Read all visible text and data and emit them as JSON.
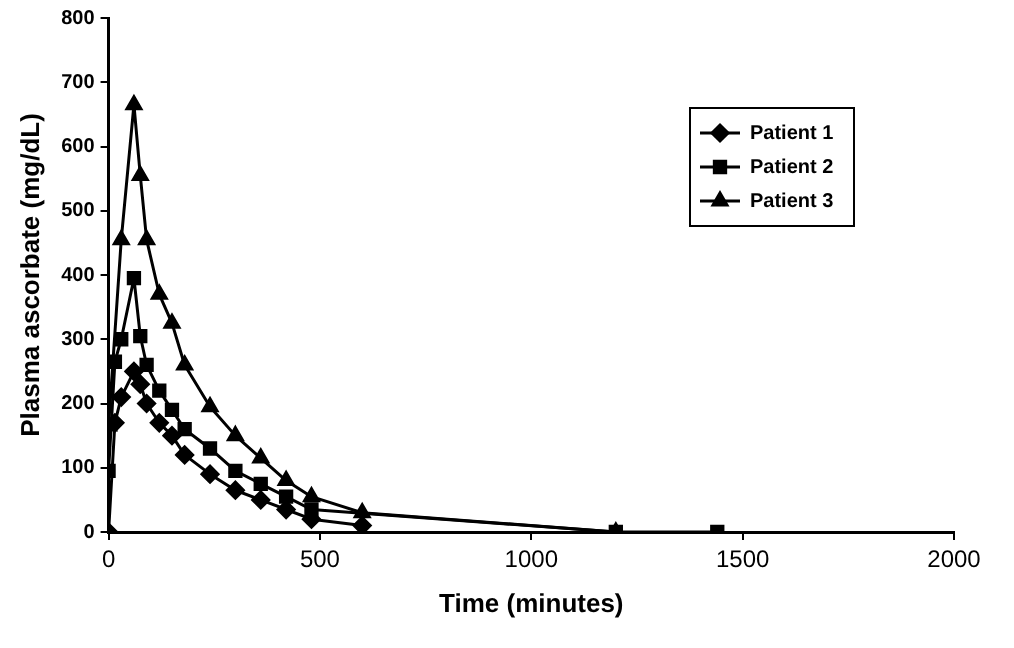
{
  "chart_data": {
    "type": "line",
    "xlabel": "Time (minutes)",
    "ylabel": "Plasma ascorbate (mg/dL)",
    "xlim": [
      0,
      2000
    ],
    "xticks": [
      0,
      500,
      1000,
      1500,
      2000
    ],
    "ylim": [
      0,
      800
    ],
    "yticks": [
      0,
      100,
      200,
      300,
      400,
      500,
      600,
      700,
      800
    ],
    "legend": "top right",
    "line_style": "solid",
    "series": [
      {
        "name": "Patient 1",
        "color": "#000000",
        "marker": "diamond",
        "x": [
          0,
          15,
          30,
          60,
          75,
          90,
          120,
          150,
          180,
          240,
          300,
          360,
          420,
          480,
          600
        ],
        "values": [
          0,
          170,
          210,
          250,
          230,
          200,
          170,
          150,
          120,
          90,
          65,
          50,
          35,
          20,
          10
        ]
      },
      {
        "name": "Patient 2",
        "color": "#000000",
        "marker": "square",
        "x": [
          0,
          15,
          30,
          60,
          75,
          90,
          120,
          150,
          180,
          240,
          300,
          360,
          420,
          480,
          600,
          1200,
          1440
        ],
        "values": [
          95,
          265,
          300,
          395,
          305,
          260,
          220,
          190,
          160,
          130,
          95,
          75,
          55,
          35,
          null,
          0,
          0
        ]
      },
      {
        "name": "Patient 3",
        "color": "#000000",
        "marker": "triangle",
        "x": [
          0,
          30,
          60,
          75,
          90,
          120,
          150,
          180,
          240,
          300,
          360,
          420,
          480,
          600,
          1200
        ],
        "values": [
          165,
          455,
          665,
          555,
          455,
          370,
          325,
          260,
          195,
          150,
          115,
          80,
          55,
          30,
          0
        ]
      }
    ]
  }
}
